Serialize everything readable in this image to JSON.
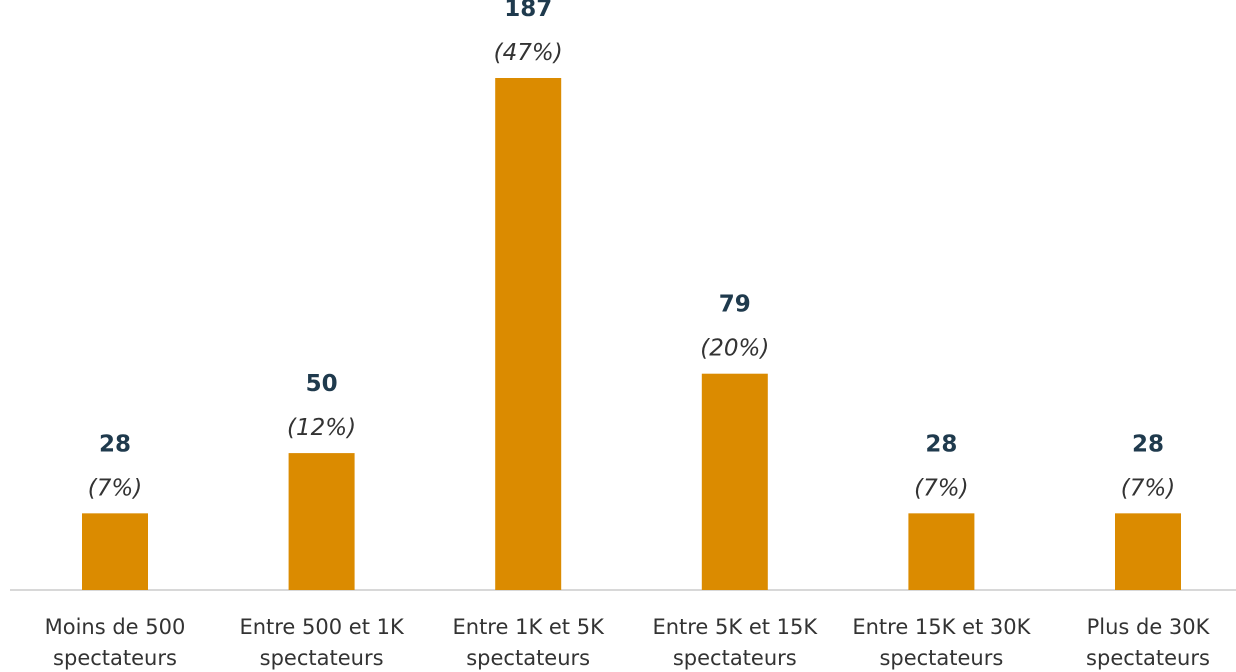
{
  "chart_data": {
    "type": "bar",
    "categories": [
      "Moins de 500\nspectateurs",
      "Entre 500 et 1K\nspectateurs",
      "Entre 1K et 5K\nspectateurs",
      "Entre 5K et 15K\nspectateurs",
      "Entre 15K et 30K\nspectateurs",
      "Plus de 30K\nspectateurs"
    ],
    "values": [
      28,
      50,
      187,
      79,
      28,
      28
    ],
    "shares": [
      7,
      12,
      47,
      20,
      7,
      7
    ],
    "share_labels": [
      "(7%)",
      "(12%)",
      "(47%)",
      "(20%)",
      "(7%)",
      "(7%)"
    ],
    "color": "#db8b00"
  }
}
